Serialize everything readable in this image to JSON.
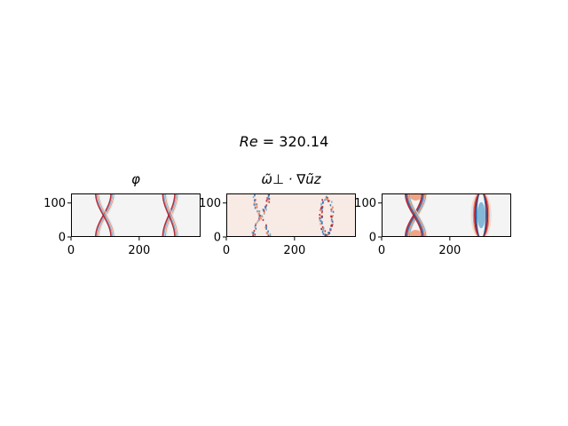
{
  "figure": {
    "suptitle_var": "Re",
    "suptitle_eq": " = ",
    "suptitle_val": "320.14"
  },
  "chart_data": [
    {
      "type": "heatmap",
      "title": "φ",
      "xlabel": "",
      "ylabel": "",
      "xlim": [
        0,
        380
      ],
      "ylim": [
        0,
        128
      ],
      "xticks": [
        0,
        200
      ],
      "yticks": [
        0,
        100
      ],
      "colormap": "RdBu_r",
      "background": "#f4f4f4",
      "features": [
        {
          "kind": "helix",
          "x_center": 100,
          "half_width": 28,
          "span": [
            75,
            128
          ]
        },
        {
          "kind": "helix",
          "x_center": 292,
          "half_width": 22,
          "span": [
            265,
            320
          ]
        }
      ]
    },
    {
      "type": "heatmap",
      "title": "ω̃⊥ · ∇ũz",
      "xlabel": "",
      "ylabel": "",
      "xlim": [
        0,
        380
      ],
      "ylim": [
        0,
        128
      ],
      "xticks": [
        0,
        200
      ],
      "yticks": [
        0,
        100
      ],
      "colormap": "RdBu_r",
      "background": "#f8ebe5",
      "features": [
        {
          "kind": "scatter-x",
          "x_center": 100,
          "half_width": 28
        },
        {
          "kind": "scatter-ring",
          "x_center": 292,
          "half_width": 22
        }
      ]
    },
    {
      "type": "heatmap",
      "title": "",
      "xlabel": "",
      "ylabel": "",
      "xlim": [
        0,
        380
      ],
      "ylim": [
        0,
        128
      ],
      "xticks": [
        0,
        200
      ],
      "yticks": [
        0,
        100
      ],
      "colormap": "RdBu_r",
      "background": "#f4f4f4",
      "features": [
        {
          "kind": "helix-strong",
          "x_center": 100,
          "half_width": 30,
          "span": [
            70,
            130
          ]
        },
        {
          "kind": "lens",
          "x_center": 292,
          "half_width": 26,
          "span": [
            265,
            320
          ]
        }
      ]
    }
  ],
  "colors": {
    "red": "#b2182b",
    "red_mid": "#ef8a62",
    "red_light": "#fddbc7",
    "blue": "#2166ac",
    "blue_mid": "#67a9cf",
    "blue_light": "#d1e5f0",
    "axis": "#000000"
  }
}
